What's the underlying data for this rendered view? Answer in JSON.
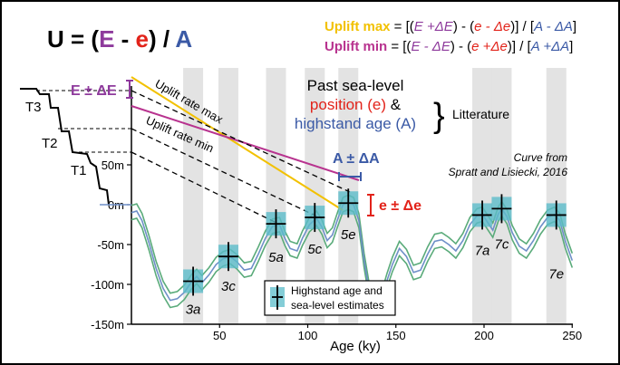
{
  "colors": {
    "purple": "#8e3a9c",
    "red": "#e2231a",
    "blue": "#3b5aa6",
    "yellow": "#f2c100",
    "magenta": "#b8338f",
    "teal": "#5bbcc9",
    "green": "#5aab7a",
    "curve_blue": "#6f8fc8",
    "band": "#e3e3e3"
  },
  "formula": {
    "U": "U",
    "eq": " = (",
    "E": "E",
    "minus": " - ",
    "e": "e",
    "close": ") / ",
    "A": "A"
  },
  "uplift": {
    "max_label": "Uplift max",
    "min_label": "Uplift min",
    "eq": " =  ",
    "max_expr": [
      {
        "t": "[(",
        "c": "black",
        "i": false
      },
      {
        "t": "E +ΔE",
        "c": "purple",
        "i": true
      },
      {
        "t": ") - (",
        "c": "black",
        "i": false
      },
      {
        "t": "e - Δe",
        "c": "red",
        "i": true
      },
      {
        "t": ")] / [",
        "c": "black",
        "i": false
      },
      {
        "t": "A - ΔA",
        "c": "blue",
        "i": true
      },
      {
        "t": "]",
        "c": "black",
        "i": false
      }
    ],
    "min_expr": [
      {
        "t": "[(",
        "c": "black",
        "i": false
      },
      {
        "t": "E - ΔE",
        "c": "purple",
        "i": true
      },
      {
        "t": ") - (",
        "c": "black",
        "i": false
      },
      {
        "t": "e +Δe",
        "c": "red",
        "i": true
      },
      {
        "t": ")] / [",
        "c": "black",
        "i": false
      },
      {
        "t": "A +ΔA",
        "c": "blue",
        "i": true
      },
      {
        "t": "]",
        "c": "black",
        "i": false
      }
    ]
  },
  "annotations": {
    "past_sea_level": "Past sea-level",
    "position": "position (e)",
    "amp": " &",
    "highstand_age": "highstand age (A)",
    "brace": "}",
    "litterature": "Litterature",
    "E_delta": "E ± ΔE",
    "A_delta": "A ± ΔA",
    "e_delta": "e ± Δe",
    "rate_max": "Uplift rate max",
    "rate_min": "Uplift rate min",
    "curve_from": "Curve from",
    "curve_source": "Spratt and Lisiecki, 2016"
  },
  "terraces": [
    "T3",
    "T2",
    "T1"
  ],
  "y_ticks": [
    "50m",
    "0m",
    "-50m",
    "-100m",
    "-150m"
  ],
  "x_ticks": [
    "50",
    "100",
    "150",
    "200",
    "250"
  ],
  "x_label": "Age (ky)",
  "stages": [
    "3a",
    "3c",
    "5a",
    "5c",
    "5e",
    "7a",
    "7c",
    "7e"
  ],
  "legend": {
    "line1": "Highstand age and",
    "line2": "sea-level estimates"
  },
  "highstands": [
    {
      "age": 35,
      "level": -96
    },
    {
      "age": 55,
      "level": -65
    },
    {
      "age": 82,
      "level": -24
    },
    {
      "age": 104,
      "level": -16
    },
    {
      "age": 123,
      "level": 2
    },
    {
      "age": 199,
      "level": -13
    },
    {
      "age": 210,
      "level": -5
    },
    {
      "age": 241,
      "level": -13
    }
  ],
  "sea_level_curve": [
    [
      0,
      -10
    ],
    [
      3,
      -8
    ],
    [
      6,
      -20
    ],
    [
      10,
      -48
    ],
    [
      14,
      -80
    ],
    [
      18,
      -105
    ],
    [
      22,
      -120
    ],
    [
      26,
      -118
    ],
    [
      30,
      -110
    ],
    [
      34,
      -97
    ],
    [
      37,
      -90
    ],
    [
      40,
      -98
    ],
    [
      44,
      -88
    ],
    [
      48,
      -75
    ],
    [
      52,
      -68
    ],
    [
      56,
      -65
    ],
    [
      60,
      -72
    ],
    [
      64,
      -82
    ],
    [
      68,
      -80
    ],
    [
      72,
      -62
    ],
    [
      76,
      -42
    ],
    [
      80,
      -27
    ],
    [
      84,
      -25
    ],
    [
      87,
      -42
    ],
    [
      90,
      -55
    ],
    [
      94,
      -58
    ],
    [
      97,
      -42
    ],
    [
      101,
      -25
    ],
    [
      105,
      -17
    ],
    [
      108,
      -28
    ],
    [
      111,
      -45
    ],
    [
      114,
      -38
    ],
    [
      117,
      -18
    ],
    [
      120,
      0
    ],
    [
      123,
      3
    ],
    [
      126,
      0
    ],
    [
      129,
      -20
    ],
    [
      132,
      -70
    ],
    [
      135,
      -110
    ],
    [
      138,
      -122
    ],
    [
      142,
      -118
    ],
    [
      145,
      -95
    ],
    [
      148,
      -75
    ],
    [
      152,
      -55
    ],
    [
      156,
      -65
    ],
    [
      160,
      -85
    ],
    [
      164,
      -82
    ],
    [
      168,
      -62
    ],
    [
      172,
      -46
    ],
    [
      176,
      -44
    ],
    [
      180,
      -50
    ],
    [
      184,
      -58
    ],
    [
      188,
      -45
    ],
    [
      192,
      -25
    ],
    [
      196,
      -14
    ],
    [
      199,
      -12
    ],
    [
      202,
      -22
    ],
    [
      205,
      -32
    ],
    [
      208,
      -12
    ],
    [
      210,
      -5
    ],
    [
      213,
      -15
    ],
    [
      216,
      -35
    ],
    [
      220,
      -52
    ],
    [
      224,
      -58
    ],
    [
      228,
      -45
    ],
    [
      232,
      -28
    ],
    [
      236,
      -16
    ],
    [
      240,
      -12
    ],
    [
      243,
      -20
    ],
    [
      246,
      -45
    ],
    [
      250,
      -70
    ]
  ]
}
